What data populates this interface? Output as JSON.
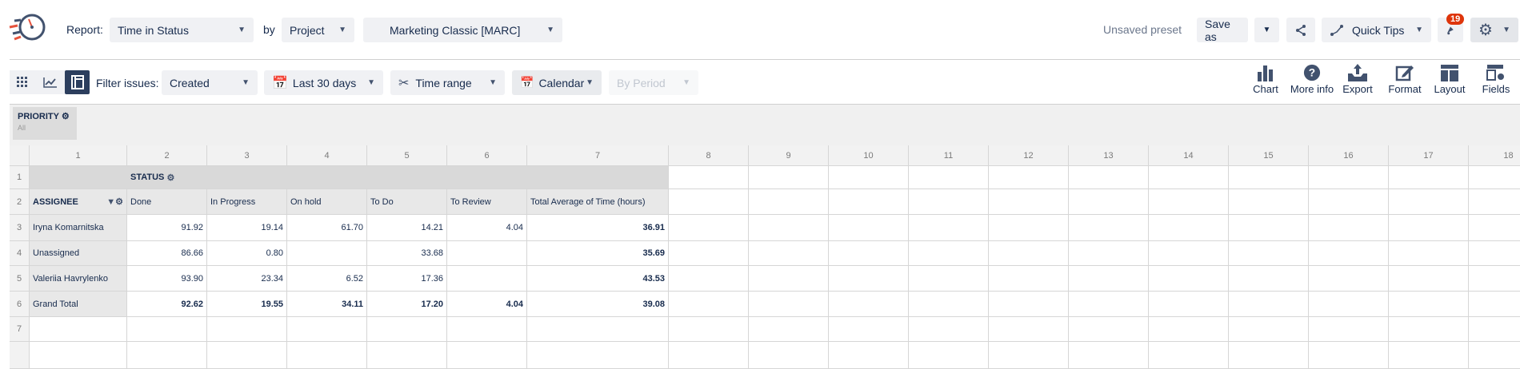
{
  "header": {
    "report_label": "Report:",
    "report_value": "Time in Status",
    "by_label": "by",
    "by_value": "Project",
    "project_value": "Marketing Classic [MARC]",
    "unsaved": "Unsaved preset",
    "save_as": "Save as",
    "quick_tips": "Quick Tips",
    "notifications": "19"
  },
  "toolbar": {
    "filter_label": "Filter issues:",
    "filter_value": "Created",
    "date_range": "Last 30 days",
    "time_range": "Time range",
    "calendar": "Calendar",
    "by_period": "By Period",
    "actions": [
      "Chart",
      "More info",
      "Export",
      "Format",
      "Layout",
      "Fields"
    ]
  },
  "priority": {
    "label": "PRIORITY",
    "value": "All"
  },
  "table": {
    "col_numbers": [
      "1",
      "2",
      "3",
      "4",
      "5",
      "6",
      "7",
      "8",
      "9",
      "10",
      "11",
      "12",
      "13",
      "14",
      "15",
      "16",
      "17",
      "18"
    ],
    "row_numbers": [
      "1",
      "2",
      "3",
      "4",
      "5",
      "6",
      "7"
    ],
    "status_label": "STATUS",
    "assignee_label": "ASSIGNEE",
    "columns": [
      "Done",
      "In Progress",
      "On hold",
      "To Do",
      "To Review",
      "Total Average of Time (hours)"
    ],
    "rows": [
      {
        "name": "Iryna Komarnitska",
        "values": [
          "91.92",
          "19.14",
          "61.70",
          "14.21",
          "4.04",
          "36.91"
        ]
      },
      {
        "name": "Unassigned",
        "values": [
          "86.66",
          "0.80",
          "",
          "33.68",
          "",
          "35.69"
        ]
      },
      {
        "name": "Valeriia Havrylenko",
        "values": [
          "93.90",
          "23.34",
          "6.52",
          "17.36",
          "",
          "43.53"
        ]
      },
      {
        "name": "Grand Total",
        "values": [
          "92.62",
          "19.55",
          "34.11",
          "17.20",
          "4.04",
          "39.08"
        ]
      }
    ]
  },
  "colors": {
    "accent": "#2c3e5d",
    "badge": "#de350b",
    "icon": "#42526e"
  }
}
